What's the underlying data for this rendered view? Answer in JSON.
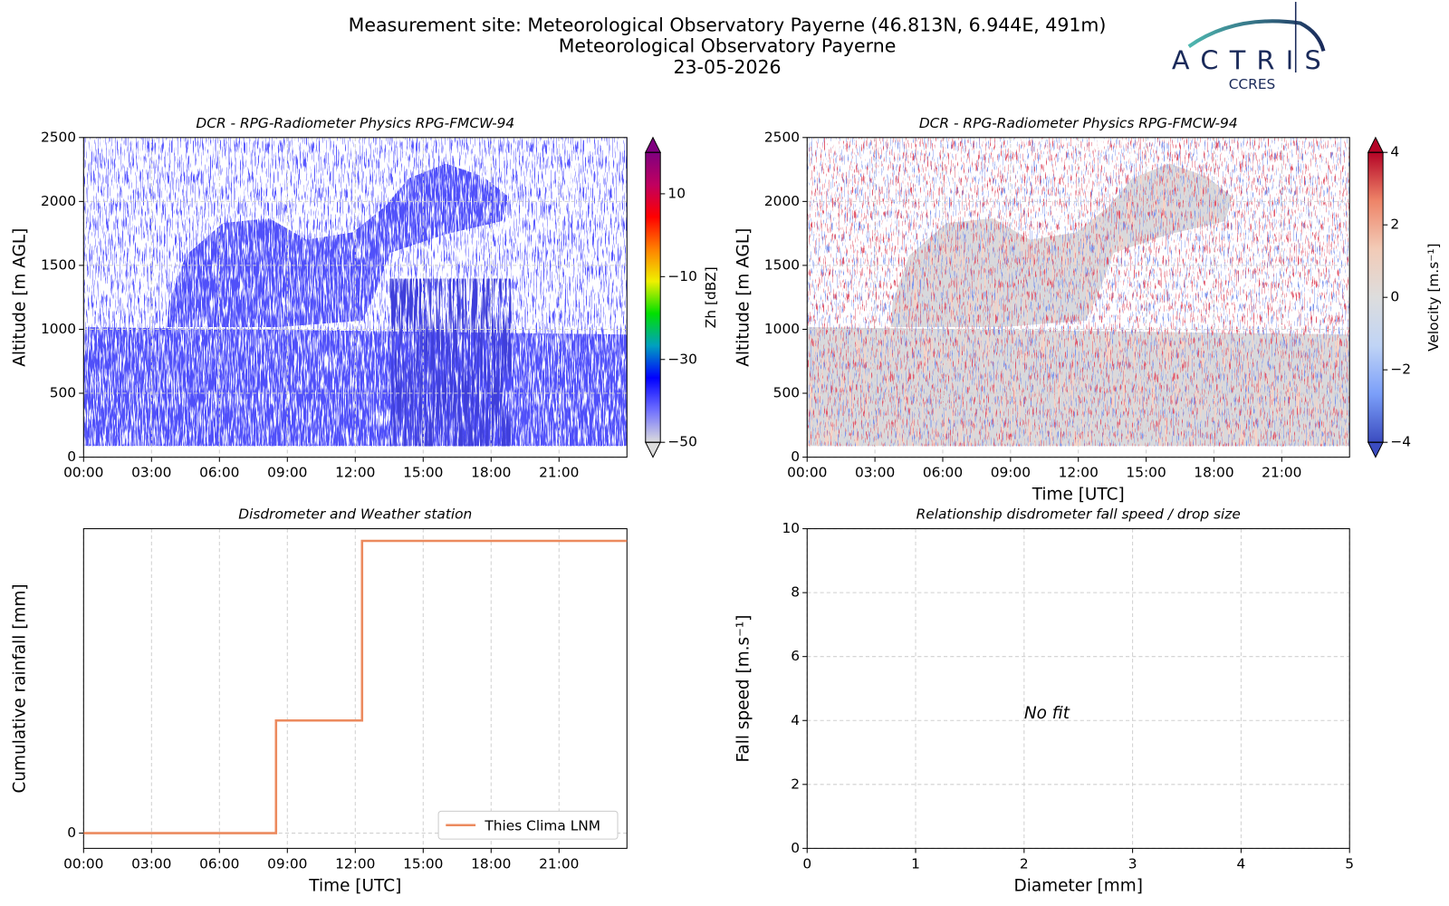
{
  "header": {
    "lines": [
      "Measurement site: Meteorological Observatory Payerne (46.813N, 6.944E, 491m)",
      "Meteorological Observatory Payerne",
      "23-05-2026"
    ],
    "logo": "ACTRIS",
    "logo_sub": "CCRES"
  },
  "chart_data": [
    {
      "type": "heatmap",
      "title": "DCR - RPG-Radiometer Physics RPG-FMCW-94",
      "ylabel": "Altitude [m AGL]",
      "xlim": [
        0,
        24
      ],
      "xticks": [
        {
          "value": 0,
          "label": "00:00"
        },
        {
          "value": 3,
          "label": "03:00"
        },
        {
          "value": 6,
          "label": "06:00"
        },
        {
          "value": 9,
          "label": "09:00"
        },
        {
          "value": 12,
          "label": "12:00"
        },
        {
          "value": 15,
          "label": "15:00"
        },
        {
          "value": 18,
          "label": "18:00"
        },
        {
          "value": 21,
          "label": "21:00"
        }
      ],
      "ylim": [
        0,
        2500
      ],
      "yticks": [
        0,
        500,
        1000,
        1500,
        2000,
        2500
      ],
      "grid": true,
      "colorbar": {
        "label": "Zh [dBZ]",
        "lim": [
          -50,
          20
        ],
        "ticks": [
          {
            "value": -50,
            "label": "−50"
          },
          {
            "value": -30,
            "label": "−30"
          },
          {
            "value": -10,
            "label": "−10"
          },
          10
        ],
        "colors": [
          "#dcdcdc",
          "#6f6fff",
          "#0000ff",
          "#00a0c0",
          "#00e000",
          "#f0f000",
          "#ff8000",
          "#ff0000",
          "#c00060",
          "#800080"
        ]
      }
    },
    {
      "type": "heatmap",
      "title": "DCR - RPG-Radiometer Physics RPG-FMCW-94",
      "ylabel": "Altitude [m AGL]",
      "xlabel": "Time [UTC]",
      "xlim": [
        0,
        24
      ],
      "xticks": [
        {
          "value": 0,
          "label": "00:00"
        },
        {
          "value": 3,
          "label": "03:00"
        },
        {
          "value": 6,
          "label": "06:00"
        },
        {
          "value": 9,
          "label": "09:00"
        },
        {
          "value": 12,
          "label": "12:00"
        },
        {
          "value": 15,
          "label": "15:00"
        },
        {
          "value": 18,
          "label": "18:00"
        },
        {
          "value": 21,
          "label": "21:00"
        }
      ],
      "ylim": [
        0,
        2500
      ],
      "yticks": [
        0,
        500,
        1000,
        1500,
        2000,
        2500
      ],
      "grid": true,
      "colorbar": {
        "label": "Velocity [m.s⁻¹]",
        "lim": [
          -4,
          4
        ],
        "ticks": [
          {
            "value": -4,
            "label": "−4"
          },
          {
            "value": -2,
            "label": "−2"
          },
          0,
          2,
          4
        ],
        "colors": [
          "#3b4cc0",
          "#7b9ff9",
          "#c0d4f5",
          "#dddddd",
          "#f2cbb7",
          "#ee8468",
          "#b40426"
        ]
      }
    },
    {
      "type": "line",
      "title": "Disdrometer and Weather station",
      "ylabel": "Cumulative rainfall [mm]",
      "xlabel": "Time [UTC]",
      "x": [
        0,
        8.5,
        8.5,
        12.3,
        12.3,
        24
      ],
      "series": [
        {
          "name": "Thies Clima LNM",
          "color": "#ec8a5e",
          "values": [
            0,
            0,
            0.37,
            0.37,
            0.96,
            0.96
          ]
        }
      ],
      "xlim": [
        0,
        24
      ],
      "xticks": [
        {
          "value": 0,
          "label": "00:00"
        },
        {
          "value": 3,
          "label": "03:00"
        },
        {
          "value": 6,
          "label": "06:00"
        },
        {
          "value": 9,
          "label": "09:00"
        },
        {
          "value": 12,
          "label": "12:00"
        },
        {
          "value": 15,
          "label": "15:00"
        },
        {
          "value": 18,
          "label": "18:00"
        },
        {
          "value": 21,
          "label": "21:00"
        }
      ],
      "ylim": [
        -0.05,
        1.0
      ],
      "yticks": [
        0
      ],
      "grid": true,
      "legend": "lower right"
    },
    {
      "type": "scatter",
      "title": "Relationship disdrometer fall speed / drop size",
      "xlabel": "Diameter [mm]",
      "ylabel": "Fall speed [m.s⁻¹]",
      "xlim": [
        0,
        5
      ],
      "xticks": [
        0,
        1,
        2,
        3,
        4,
        5
      ],
      "ylim": [
        0,
        10
      ],
      "yticks": [
        0,
        2,
        4,
        6,
        8,
        10
      ],
      "grid": true,
      "annotation": "No fit"
    }
  ]
}
